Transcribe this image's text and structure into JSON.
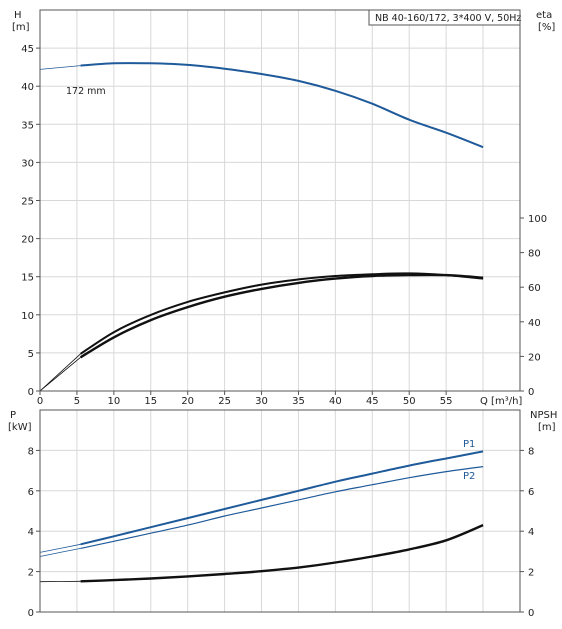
{
  "chart_data": [
    {
      "type": "line",
      "title": "NB 40-160/172, 3*400 V, 50Hz",
      "xlabel": "Q [m³/h]",
      "ylabel_left": [
        "H",
        "[m]"
      ],
      "ylabel_right": [
        "eta",
        "[%]"
      ],
      "xlim": [
        0,
        65
      ],
      "xticks": [
        0,
        5,
        10,
        15,
        20,
        25,
        30,
        35,
        40,
        45,
        50,
        55
      ],
      "ylim_left": [
        0,
        50
      ],
      "yticks_left": [
        0,
        5,
        10,
        15,
        20,
        25,
        30,
        35,
        40,
        45
      ],
      "ylim_right": [
        0,
        100
      ],
      "yticks_right": [
        0,
        20,
        40,
        60,
        80,
        100
      ],
      "grid": true,
      "annotations": [
        "172 mm"
      ],
      "series": [
        {
          "axis": "left",
          "color": "#1f5a9a",
          "x": [
            0,
            5.5,
            10,
            15,
            20,
            25,
            30,
            35,
            40,
            45,
            50,
            55,
            60
          ],
          "y": [
            42.2,
            42.7,
            43.0,
            43.0,
            42.8,
            42.3,
            41.6,
            40.7,
            39.4,
            37.7,
            35.6,
            33.9,
            32.0
          ]
        },
        {
          "axis": "right",
          "color": "#111111",
          "x": [
            0,
            5.5,
            10,
            15,
            20,
            25,
            30,
            35,
            40,
            45,
            50,
            55,
            60
          ],
          "y": [
            0,
            21.5,
            34,
            44,
            51.5,
            57,
            61.5,
            64.5,
            66.5,
            67.5,
            68,
            67,
            65
          ]
        },
        {
          "axis": "right",
          "color": "#111111",
          "x": [
            0,
            5.5,
            10,
            15,
            20,
            25,
            30,
            35,
            40,
            45,
            50,
            55,
            60
          ],
          "y": [
            0,
            19.5,
            31,
            41,
            48.5,
            54.5,
            59,
            62.5,
            65,
            66.5,
            67,
            67,
            65.5
          ]
        }
      ]
    },
    {
      "type": "line",
      "xlim": [
        0,
        65
      ],
      "ylabel_left": [
        "P",
        "[kW]"
      ],
      "ylabel_right": [
        "NPSH",
        "[m]"
      ],
      "ylim_left": [
        0,
        10
      ],
      "yticks_left": [
        0,
        2,
        4,
        6,
        8
      ],
      "ylim_right": [
        0,
        10
      ],
      "yticks_right": [
        0,
        2,
        4,
        6,
        8
      ],
      "grid": true,
      "series": [
        {
          "name": "P1",
          "axis": "left",
          "color": "#1f5a9a",
          "x": [
            0,
            5.5,
            10,
            15,
            20,
            25,
            30,
            35,
            40,
            45,
            50,
            55,
            60
          ],
          "y": [
            2.95,
            3.35,
            3.75,
            4.2,
            4.65,
            5.1,
            5.55,
            6.0,
            6.45,
            6.85,
            7.25,
            7.6,
            7.95
          ]
        },
        {
          "name": "P2",
          "axis": "left",
          "color": "#1f5a9a",
          "x": [
            0,
            5.5,
            10,
            15,
            20,
            25,
            30,
            35,
            40,
            45,
            50,
            55,
            60
          ],
          "y": [
            2.75,
            3.15,
            3.5,
            3.9,
            4.3,
            4.75,
            5.15,
            5.55,
            5.95,
            6.3,
            6.65,
            6.95,
            7.2
          ]
        },
        {
          "axis": "right",
          "color": "#111111",
          "x": [
            0,
            5.5,
            10,
            15,
            20,
            25,
            30,
            35,
            40,
            45,
            50,
            55,
            60
          ],
          "y": [
            1.5,
            1.52,
            1.58,
            1.66,
            1.76,
            1.88,
            2.02,
            2.2,
            2.45,
            2.75,
            3.1,
            3.55,
            4.3
          ]
        }
      ]
    }
  ]
}
